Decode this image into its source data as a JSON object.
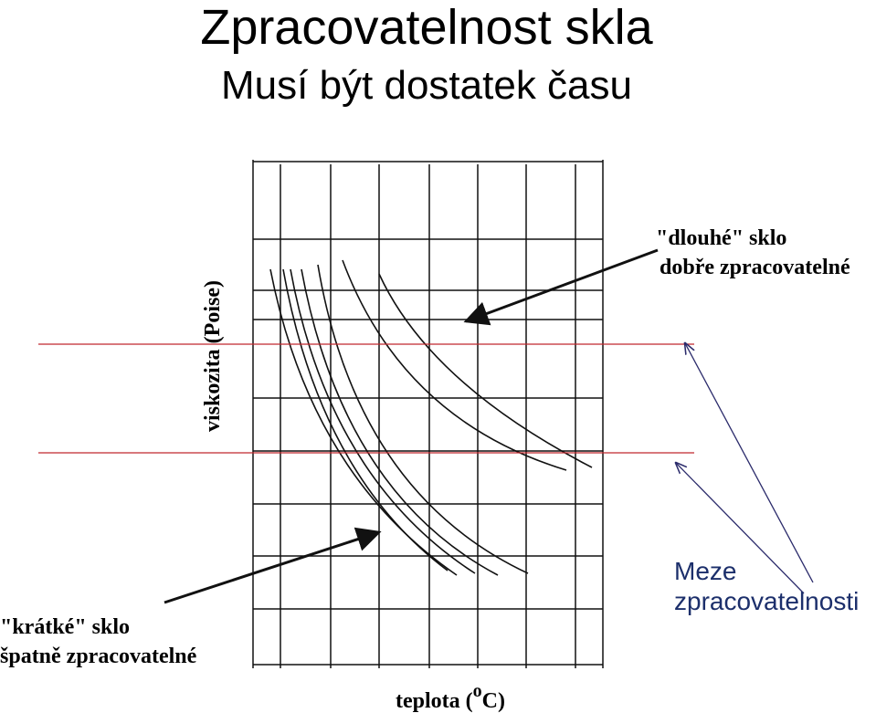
{
  "title": "Zpracovatelnost skla",
  "subtitle": "Musí být dostatek času",
  "chart": {
    "y_axis_label": "viskozita (Poise)",
    "x_axis_label": {
      "prefix": "teplota (",
      "degree": "o",
      "unit": "C)"
    }
  },
  "annotations": {
    "long_glass": [
      "\"dlouhé\" sklo",
      "dobře zpracovatelné"
    ],
    "short_glass": [
      "\"krátké\" sklo",
      "špatně zpracovatelné"
    ],
    "limits": [
      "Meze",
      "zpracovatelnosti"
    ]
  }
}
